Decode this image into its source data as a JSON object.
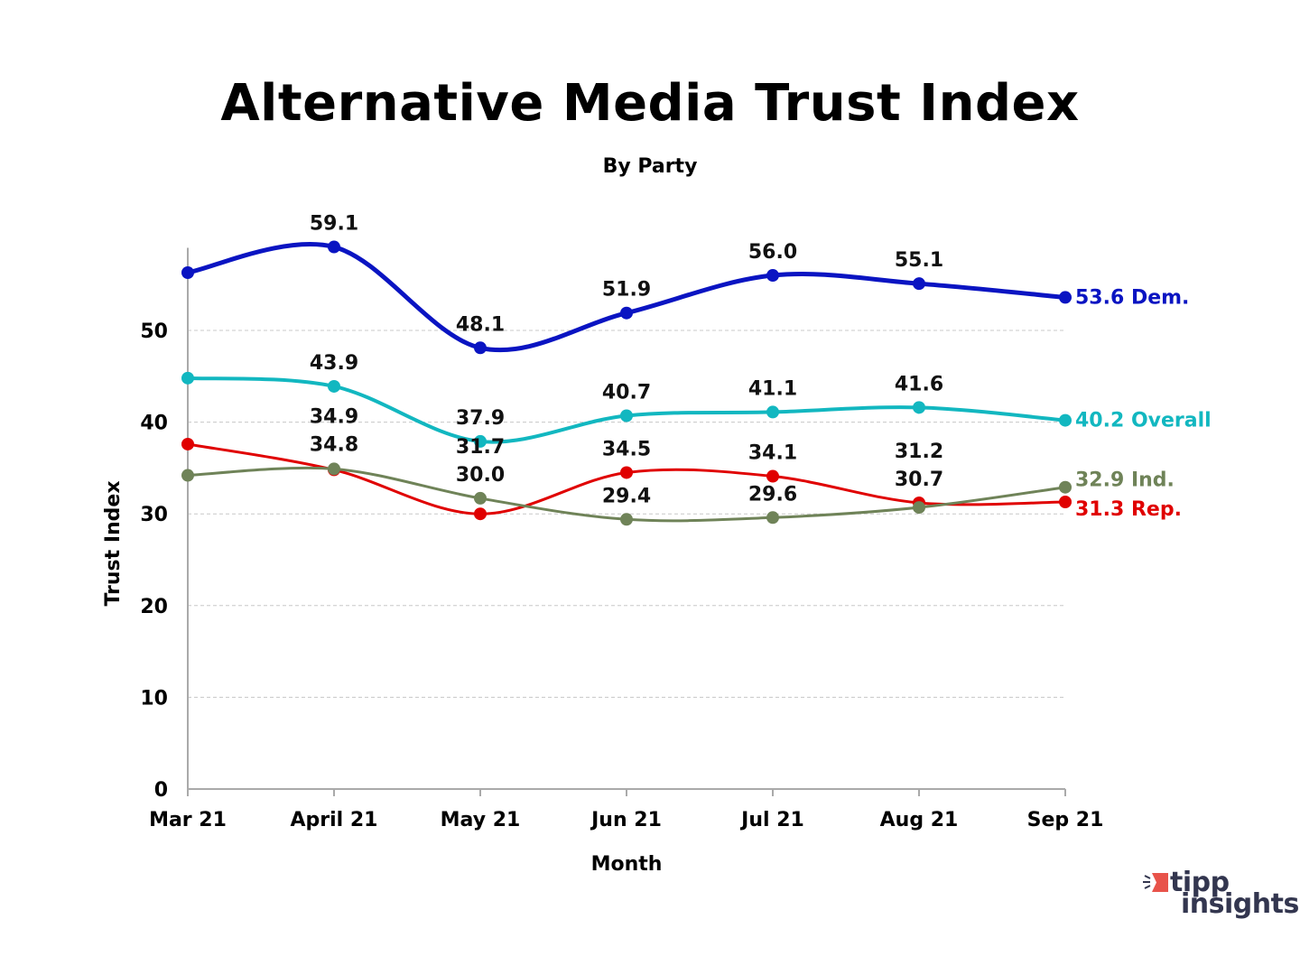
{
  "title": "Alternative Media Trust Index",
  "subtitle": "By Party",
  "logo": {
    "line1": "tipp",
    "line2": "insights",
    "accent": "#e8534a",
    "text_color": "#33364f"
  },
  "chart_data": {
    "type": "line",
    "title": "Alternative Media Trust Index",
    "subtitle": "By Party",
    "xlabel": "Month",
    "ylabel": "Trust Index",
    "categories": [
      "Mar 21",
      "April 21",
      "May 21",
      "Jun 21",
      "Jul 21",
      "Aug 21",
      "Sep 21"
    ],
    "ylim": [
      0,
      59
    ],
    "yticks": [
      0,
      10,
      20,
      30,
      40,
      50
    ],
    "grid": true,
    "series": [
      {
        "name": "Dem.",
        "color": "#0a14c2",
        "values": [
          56.3,
          59.1,
          48.1,
          51.9,
          56.0,
          55.1,
          53.6
        ]
      },
      {
        "name": "Overall",
        "color": "#12b7c0",
        "values": [
          44.8,
          43.9,
          37.9,
          40.7,
          41.1,
          41.6,
          40.2
        ]
      },
      {
        "name": "Rep.",
        "color": "#e00000",
        "values": [
          37.6,
          34.8,
          30.0,
          34.5,
          34.1,
          31.2,
          31.3
        ]
      },
      {
        "name": "Ind.",
        "color": "#6f8358",
        "values": [
          34.2,
          34.9,
          31.7,
          29.4,
          29.6,
          30.7,
          32.9
        ]
      }
    ]
  }
}
